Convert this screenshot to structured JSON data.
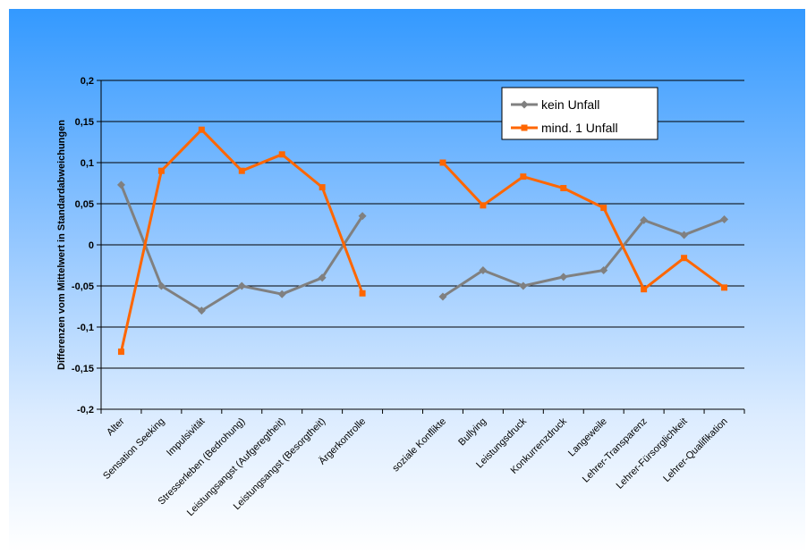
{
  "chart_data": {
    "type": "line",
    "ylabel": "Differenzen vom Mittelwert in Standardabweichungen",
    "ylim": [
      -0.2,
      0.2
    ],
    "yticks": [
      0.2,
      0.15,
      0.1,
      0.05,
      0,
      -0.05,
      -0.1,
      -0.15,
      -0.2
    ],
    "ytick_labels": [
      "0,2",
      "0,15",
      "0,1",
      "0,05",
      "0",
      "-0,05",
      "-0,1",
      "-0,15",
      "-0,2"
    ],
    "grid": "horizontal",
    "legend_position": "top-right",
    "categories": [
      "Alter",
      "Sensation Seeking",
      "Impulsivität",
      "Stresserleben (Bedrohung)",
      "Leistungsangst (Aufgeregtheit)",
      "Leistungsangst (Besorgtheit)",
      "Ärgerkontrolle",
      "",
      "soziale Konflikte",
      "Bullying",
      "Leistungsdruck",
      "Konkurrenzdruck",
      "Langeweile",
      "Lehrer-Transparenz",
      "Lehrer-Fürsorglichkeit",
      "Lehrer-Qualifikation"
    ],
    "series": [
      {
        "name": "kein Unfall",
        "color": "#808080",
        "marker": "diamond",
        "values": [
          0.073,
          -0.05,
          -0.08,
          -0.05,
          -0.06,
          -0.04,
          0.035,
          null,
          -0.063,
          -0.031,
          -0.05,
          -0.039,
          -0.031,
          0.03,
          0.012,
          0.031
        ]
      },
      {
        "name": "mind. 1 Unfall",
        "color": "#ff6600",
        "marker": "square",
        "values": [
          -0.13,
          0.09,
          0.14,
          0.09,
          0.11,
          0.07,
          -0.059,
          null,
          0.1,
          0.048,
          0.083,
          0.069,
          0.045,
          -0.054,
          -0.016,
          -0.052
        ]
      }
    ]
  }
}
